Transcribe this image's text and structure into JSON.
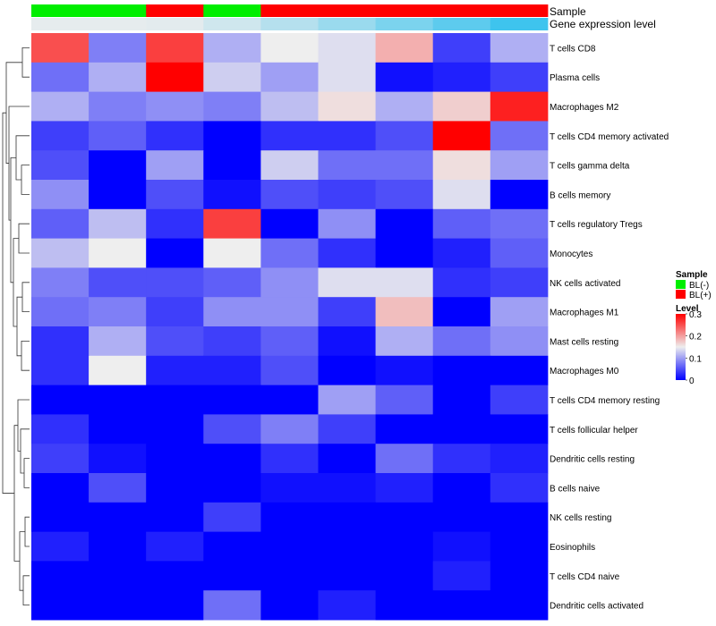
{
  "chart_data": {
    "type": "heatmap",
    "title": "",
    "column_annotations": [
      {
        "name": "Sample",
        "values": [
          "BL(-)",
          "BL(-)",
          "BL(+)",
          "BL(-)",
          "BL(+)",
          "BL(+)",
          "BL(+)",
          "BL(+)",
          "BL(+)"
        ],
        "colors": {
          "BL(-)": "#00ee00",
          "BL(+)": "#ff0000"
        }
      },
      {
        "name": "Gene expression level",
        "values": [
          0.2,
          0.2,
          0.3,
          0.8,
          1.5,
          2.2,
          3.0,
          3.8,
          4.6
        ],
        "colors": {
          "low": "#eeeeee",
          "high": "#3ec4ee"
        }
      }
    ],
    "rows": [
      "T cells CD8",
      "Plasma cells",
      "Macrophages M2",
      "T cells CD4 memory activated",
      "T cells gamma delta",
      "B cells memory",
      "T cells regulatory  Tregs",
      "Monocytes",
      "NK cells activated",
      "Macrophages M1",
      "Mast cells resting",
      "Macrophages M0",
      "T cells CD4 memory resting",
      "T cells follicular helper",
      "Dendritic cells resting",
      "B cells naive",
      "NK cells resting",
      "Eosinophils",
      "T cells CD4 naive",
      "Dendritic cells activated"
    ],
    "values": [
      [
        0.25,
        0.08,
        0.26,
        0.11,
        0.15,
        0.14,
        0.19,
        0.04,
        0.11
      ],
      [
        0.07,
        0.11,
        0.3,
        0.13,
        0.1,
        0.14,
        0.01,
        0.02,
        0.04
      ],
      [
        0.11,
        0.08,
        0.09,
        0.08,
        0.12,
        0.16,
        0.11,
        0.17,
        0.28
      ],
      [
        0.04,
        0.06,
        0.03,
        0.0,
        0.03,
        0.03,
        0.05,
        0.3,
        0.07
      ],
      [
        0.05,
        0.0,
        0.1,
        0.0,
        0.13,
        0.07,
        0.07,
        0.16,
        0.1
      ],
      [
        0.09,
        0.0,
        0.05,
        0.01,
        0.05,
        0.04,
        0.05,
        0.14,
        0.0
      ],
      [
        0.06,
        0.12,
        0.03,
        0.26,
        0.0,
        0.09,
        0.0,
        0.06,
        0.07
      ],
      [
        0.12,
        0.15,
        0.0,
        0.15,
        0.07,
        0.03,
        0.0,
        0.02,
        0.06
      ],
      [
        0.08,
        0.05,
        0.05,
        0.06,
        0.09,
        0.14,
        0.14,
        0.03,
        0.04
      ],
      [
        0.07,
        0.08,
        0.04,
        0.09,
        0.09,
        0.04,
        0.18,
        0.0,
        0.1
      ],
      [
        0.03,
        0.11,
        0.05,
        0.04,
        0.06,
        0.01,
        0.11,
        0.07,
        0.09
      ],
      [
        0.03,
        0.15,
        0.02,
        0.02,
        0.05,
        0.0,
        0.01,
        0.0,
        0.0
      ],
      [
        0.0,
        0.0,
        0.0,
        0.0,
        0.0,
        0.1,
        0.06,
        0.0,
        0.04
      ],
      [
        0.03,
        0.0,
        0.0,
        0.05,
        0.08,
        0.04,
        0.0,
        0.0,
        0.0
      ],
      [
        0.04,
        0.01,
        0.0,
        0.0,
        0.03,
        0.0,
        0.07,
        0.03,
        0.02
      ],
      [
        0.0,
        0.05,
        0.0,
        0.0,
        0.01,
        0.01,
        0.02,
        0.0,
        0.03
      ],
      [
        0.0,
        0.0,
        0.0,
        0.04,
        0.0,
        0.0,
        0.0,
        0.0,
        0.0
      ],
      [
        0.02,
        0.0,
        0.02,
        0.0,
        0.0,
        0.0,
        0.0,
        0.01,
        0.0
      ],
      [
        0.0,
        0.0,
        0.0,
        0.0,
        0.0,
        0.0,
        0.0,
        0.02,
        0.0
      ],
      [
        0.0,
        0.0,
        0.0,
        0.07,
        0.0,
        0.02,
        0.0,
        0.0,
        0.0
      ]
    ],
    "color_scale": {
      "min": 0,
      "mid": 0.15,
      "max": 0.3,
      "low_color": "#0000ff",
      "mid_color": "#eeeeee",
      "high_color": "#ff0000"
    },
    "legends": [
      {
        "title": "Sample",
        "entries": [
          {
            "label": "BL(-)",
            "color": "#00ee00"
          },
          {
            "label": "BL(+)",
            "color": "#ff0000"
          }
        ]
      },
      {
        "title": "Level",
        "ticks": [
          0.3,
          0.2,
          0.1,
          0
        ]
      }
    ],
    "dendrogram": "rows-left"
  }
}
